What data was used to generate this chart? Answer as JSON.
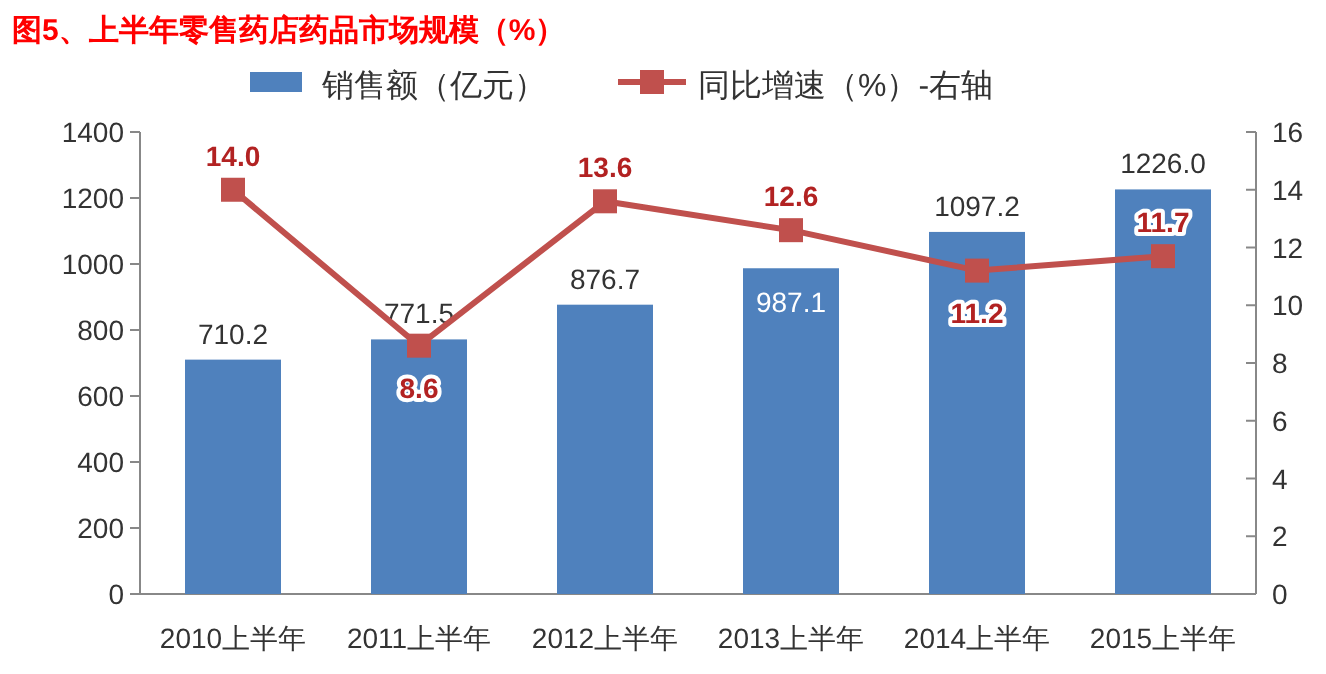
{
  "chart_data": {
    "type": "bar",
    "title": "图5、上半年零售药店药品市场规模（%）",
    "categories": [
      "2010上半年",
      "2011上半年",
      "2012上半年",
      "2013上半年",
      "2014上半年",
      "2015上半年"
    ],
    "series": [
      {
        "name": "销售额（亿元）",
        "color": "#4f81bd",
        "values": [
          710.2,
          771.5,
          876.7,
          987.1,
          1097.2,
          1226.0
        ],
        "value_labels": [
          "710.2",
          "771.5",
          "876.7",
          "987.1",
          "1097.2",
          "1226.0"
        ]
      },
      {
        "name": "同比增速（%）-右轴",
        "type": "line",
        "axis": "y2",
        "color": "#c0504d",
        "values": [
          14.0,
          8.6,
          13.6,
          12.6,
          11.2,
          11.7
        ],
        "value_labels": [
          "14.0",
          "8.6",
          "13.6",
          "12.6",
          "11.2",
          "11.7"
        ]
      }
    ],
    "ylim": [
      0,
      1400
    ],
    "yticks": [
      0,
      200,
      400,
      600,
      800,
      1000,
      1200,
      1400
    ],
    "y2lim": [
      0,
      16
    ],
    "y2ticks": [
      0,
      2,
      4,
      6,
      8,
      10,
      12,
      14,
      16
    ],
    "legend": "top",
    "marker": "square"
  }
}
